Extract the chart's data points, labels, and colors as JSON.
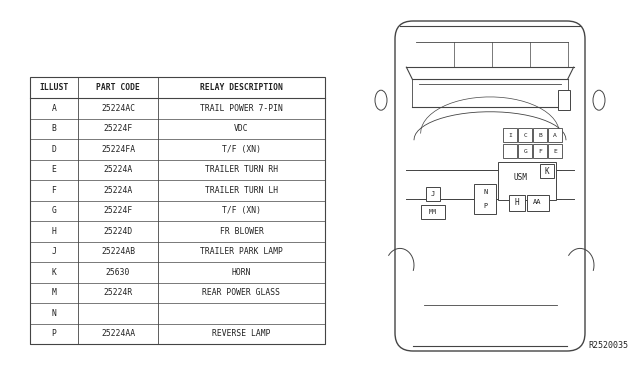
{
  "ref_code": "R2520035",
  "background_color": "#ffffff",
  "table_headers": [
    "ILLUST",
    "PART CODE",
    "RELAY DESCRIPTION"
  ],
  "table_rows": [
    [
      "A",
      "25224AC",
      "TRAIL POWER 7-PIN"
    ],
    [
      "B",
      "25224F",
      "VDC"
    ],
    [
      "D",
      "25224FA",
      "T/F (XN)"
    ],
    [
      "E",
      "25224A",
      "TRAILER TURN RH"
    ],
    [
      "F",
      "25224A",
      "TRAILER TURN LH"
    ],
    [
      "G",
      "25224F",
      "T/F (XN)"
    ],
    [
      "H",
      "25224D",
      "FR BLOWER"
    ],
    [
      "J",
      "25224AB",
      "TRAILER PARK LAMP"
    ],
    [
      "K",
      "25630",
      "HORN"
    ],
    [
      "M",
      "25224R",
      "REAR POWER GLASS"
    ],
    [
      "N",
      "",
      ""
    ],
    [
      "P",
      "25224AA",
      "REVERSE LAMP"
    ]
  ],
  "line_color": "#444444",
  "text_color": "#222222",
  "font_size": 5.8
}
